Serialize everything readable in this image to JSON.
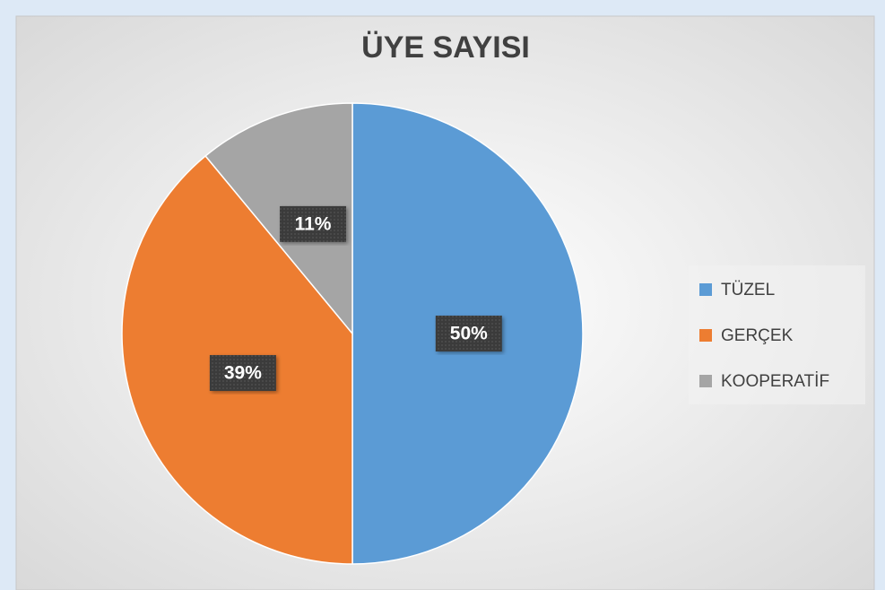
{
  "chart_data": {
    "type": "pie",
    "title": "ÜYE SAYISI",
    "categories": [
      "TÜZEL",
      "GERÇEK",
      "KOOPERATİF"
    ],
    "values": [
      50,
      39,
      11
    ],
    "value_labels": [
      "50%",
      "39%",
      "11%"
    ],
    "colors": [
      "#5b9bd5",
      "#ed7d31",
      "#a5a5a5"
    ],
    "legend": "right"
  }
}
